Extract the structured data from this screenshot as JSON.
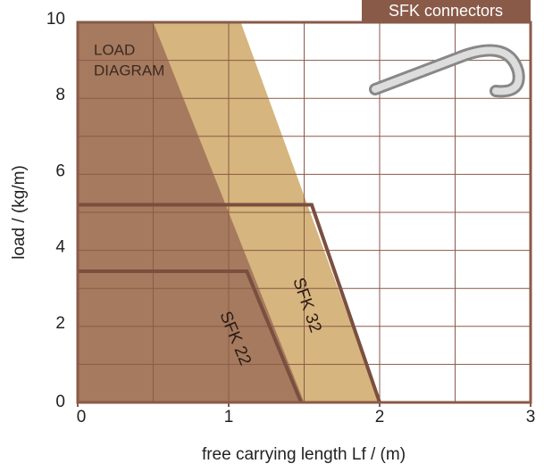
{
  "chart_data": {
    "type": "load-diagram",
    "badge": "SFK connectors",
    "annotation_lines": [
      "LOAD",
      "DIAGRAM"
    ],
    "xlabel": "free carrying length Lf / (m)",
    "ylabel": "load / (kg/m)",
    "xlim": [
      0,
      3
    ],
    "ylim": [
      0,
      10
    ],
    "xticks": [
      0,
      1,
      2,
      3
    ],
    "yticks": [
      0,
      2,
      4,
      6,
      8,
      10
    ],
    "xgrid": [
      0.5,
      1,
      1.5,
      2,
      2.5
    ],
    "ygrid": [
      1,
      2,
      3,
      4,
      5,
      6,
      7,
      8,
      9
    ],
    "grid_color": "#8a5a48",
    "areas": [
      {
        "color": "#d6b57e",
        "x": [
          0,
          0,
          1.08,
          2
        ],
        "y": [
          0,
          10,
          10,
          0
        ]
      },
      {
        "color": "#a67a5e",
        "x": [
          0,
          0,
          0.5,
          1.5
        ],
        "y": [
          0,
          10,
          10,
          0
        ]
      }
    ],
    "series": [
      {
        "name": "SFK 32",
        "color": "#7a4f3f",
        "x": [
          0,
          1.55,
          2
        ],
        "y": [
          5.2,
          5.2,
          0
        ]
      },
      {
        "name": "SFK 22",
        "color": "#7a4f3f",
        "x": [
          0,
          1.12,
          1.48
        ],
        "y": [
          3.45,
          3.45,
          0
        ]
      }
    ]
  }
}
